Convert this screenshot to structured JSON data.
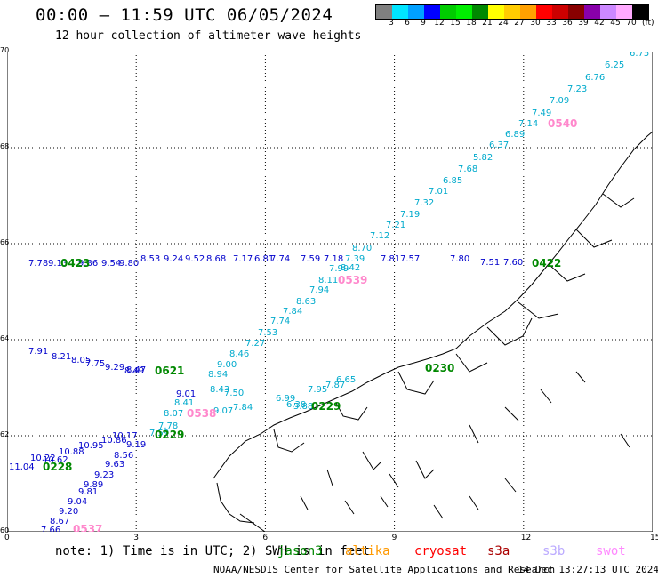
{
  "header": {
    "title": "00:00 – 11:59 UTC 06/05/2024",
    "subtitle": "12 hour collection of altimeter wave heights"
  },
  "scale": {
    "unit": "(ft)",
    "labels": [
      "3",
      "6",
      "9",
      "12",
      "15",
      "18",
      "21",
      "24",
      "27",
      "30",
      "33",
      "36",
      "39",
      "42",
      "45",
      "70"
    ],
    "colors": [
      "#808080",
      "#00e5ff",
      "#00a0ff",
      "#0000ff",
      "#00cc00",
      "#00ee00",
      "#008800",
      "#ffff00",
      "#ffcc00",
      "#ffa000",
      "#ff0000",
      "#cc0000",
      "#880000",
      "#8800aa",
      "#cc88ff",
      "#ffaaff",
      "#000000"
    ]
  },
  "map": {
    "x_ticks": [
      "0",
      "3",
      "6",
      "9",
      "12",
      "15"
    ],
    "y_ticks": [
      "60",
      "62",
      "64",
      "66",
      "68",
      "70"
    ]
  },
  "track_a": {
    "color": "#00aacc",
    "values": [
      "6.75",
      "6.25",
      "6.76",
      "7.23",
      "7.09",
      "7.49",
      "7.14",
      "6.89",
      "6.37",
      "5.82",
      "7.68",
      "6.85",
      "7.01",
      "7.32",
      "7.19",
      "7.21",
      "7.12",
      "8.70",
      "7.39",
      "8.42",
      "7.99",
      "8.11",
      "7.94",
      "8.63",
      "7.84",
      "7.74",
      "7.53",
      "7.27",
      "8.46",
      "9.00",
      "8.94",
      "8.43",
      "7.50",
      "6.99",
      "6.38",
      "5.88",
      "7.95",
      "7.87",
      "6.65",
      "7.84",
      "9.07",
      "8.41",
      "8.07",
      "7.78",
      "7.59"
    ]
  },
  "track_b": {
    "color": "#0000cc",
    "values": [
      "7.78",
      "9.13",
      "9.86",
      "9.54",
      "9.80",
      "8.53",
      "9.24",
      "9.52",
      "8.68",
      "7.17",
      "6.81",
      "7.74",
      "7.59",
      "7.18",
      "7.81",
      "7.57",
      "7.80",
      "7.51",
      "7.60",
      "7.91",
      "8.21",
      "8.05",
      "7.75",
      "9.29",
      "8.47",
      "9.01",
      "10.17",
      "10.86",
      "10.95",
      "10.88",
      "10.22",
      "10.62",
      "11.04",
      "9.19",
      "8.56",
      "9.63",
      "9.23",
      "9.89",
      "9.81",
      "9.04",
      "9.20",
      "8.67",
      "7.66",
      "8.49"
    ]
  },
  "track_labels": {
    "jason3": "0423",
    "a": "0540",
    "b": "0539",
    "c": "0621",
    "d": "0538",
    "e": "0229",
    "f": "0228",
    "g": "0537",
    "h": "0229",
    "i": "0230",
    "j": "0422"
  },
  "footer": {
    "note": "note: 1) Time is in UTC; 2) SWH is in feet",
    "satellites": [
      {
        "name": "jason3",
        "color": "#008800"
      },
      {
        "name": "altika",
        "color": "#ff9900"
      },
      {
        "name": "cryosat",
        "color": "#ff0000"
      },
      {
        "name": "s3a",
        "color": "#aa0000"
      },
      {
        "name": "s3b",
        "color": "#bbaaff"
      },
      {
        "name": "swot",
        "color": "#ff88ff"
      }
    ],
    "credit": "NOAA/NESDIS Center for Satellite Applications and Research",
    "stamp": "14 Dec 13:27:13 UTC 2024"
  }
}
